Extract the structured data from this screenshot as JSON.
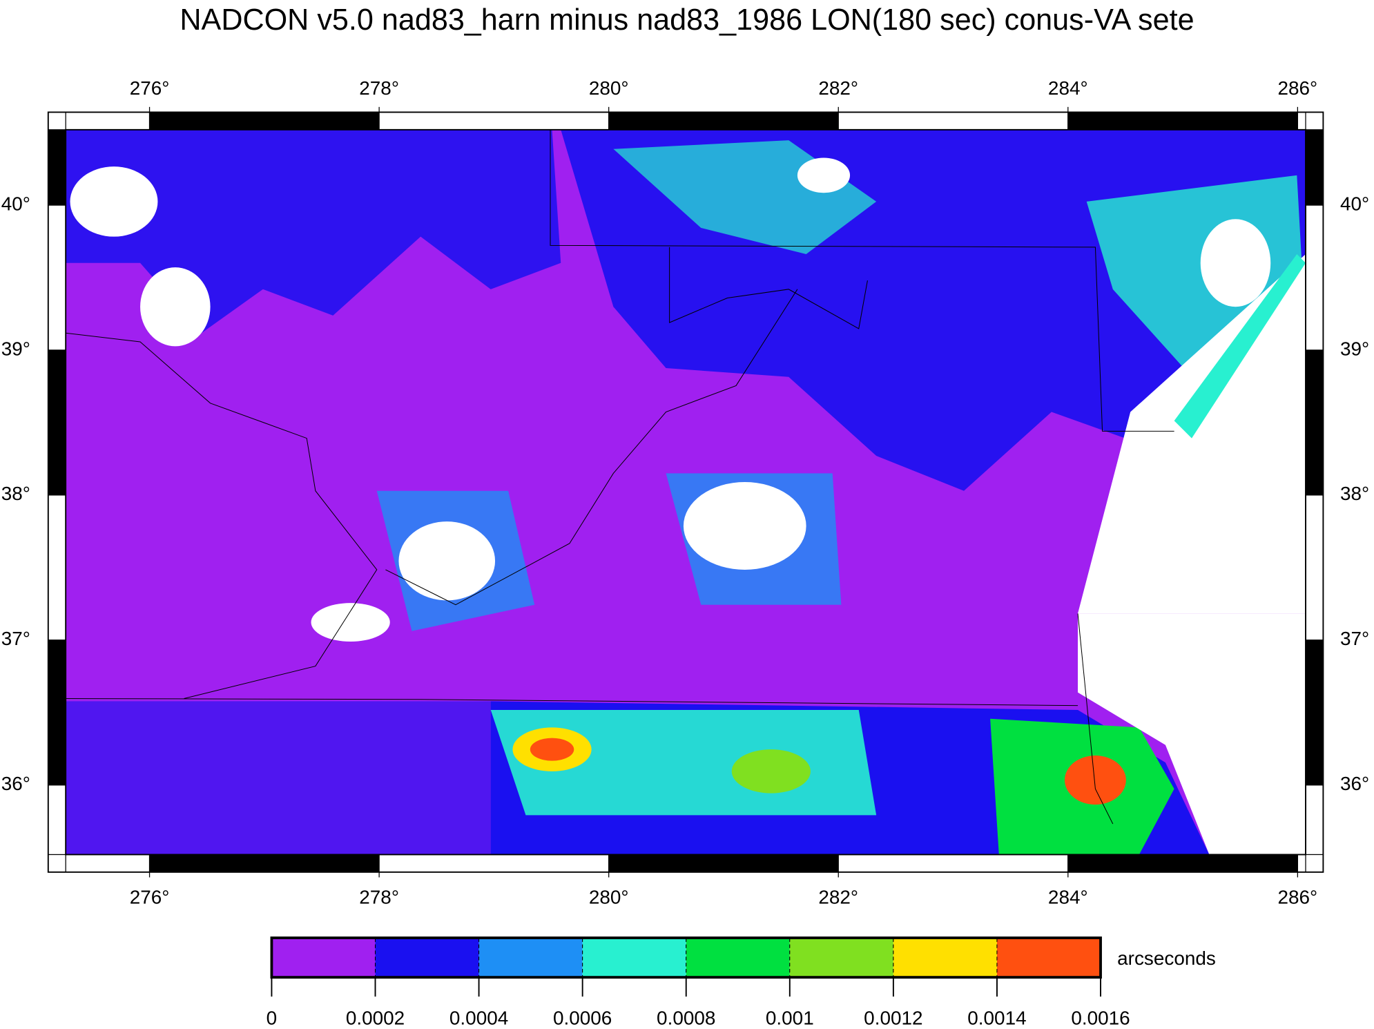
{
  "chart_data": {
    "type": "map",
    "title": "NADCON v5.0 nad83_harn minus nad83_1986 LON(180 sec) conus-VA sete",
    "xlim": [
      275.27,
      286.07
    ],
    "ylim": [
      35.52,
      40.52
    ],
    "xticks": [
      {
        "value": 276,
        "label": "276°"
      },
      {
        "value": 278,
        "label": "278°"
      },
      {
        "value": 280,
        "label": "280°"
      },
      {
        "value": 282,
        "label": "282°"
      },
      {
        "value": 284,
        "label": "284°"
      },
      {
        "value": 286,
        "label": "286°"
      }
    ],
    "yticks": [
      {
        "value": 36,
        "label": "36°"
      },
      {
        "value": 37,
        "label": "37°"
      },
      {
        "value": 38,
        "label": "38°"
      },
      {
        "value": 39,
        "label": "39°"
      },
      {
        "value": 40,
        "label": "40°"
      }
    ],
    "colorbar": {
      "label": "arcseconds",
      "clim": [
        0,
        0.0016
      ],
      "colors": [
        "#a020f0",
        "#1a10f0",
        "#1e8ff5",
        "#28f0d0",
        "#00e040",
        "#80e020",
        "#ffe000",
        "#ff5010"
      ],
      "ticks": [
        0,
        0.0002,
        0.0004,
        0.0006,
        0.0008,
        0.001,
        0.0012,
        0.0014,
        0.0016
      ]
    }
  }
}
